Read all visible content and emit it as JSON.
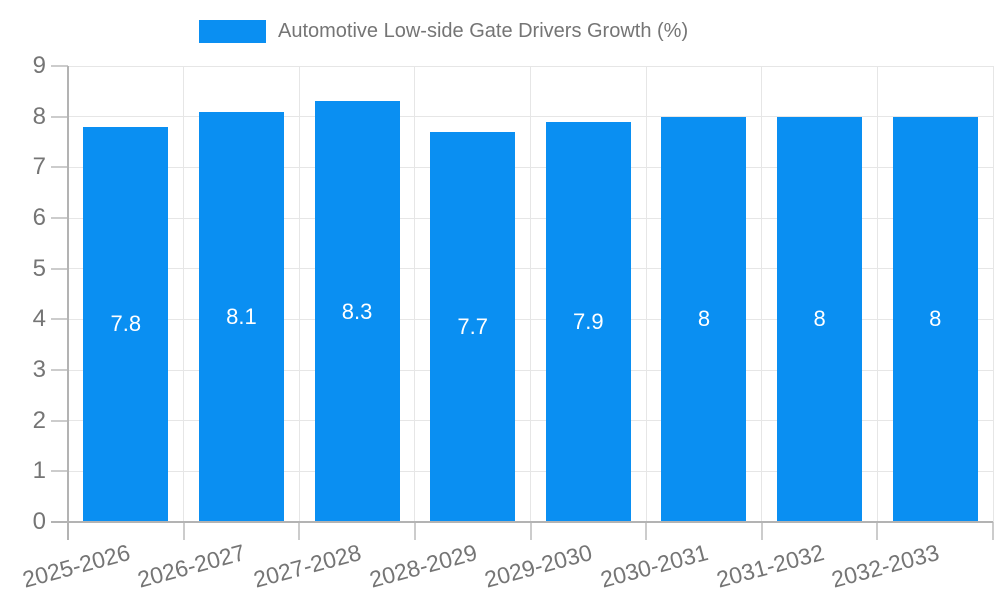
{
  "chart_data": {
    "type": "bar",
    "title": "Automotive Low-side Gate Drivers Growth (%)",
    "legend_position": "top",
    "categories": [
      "2025-2026",
      "2026-2027",
      "2027-2028",
      "2028-2029",
      "2029-2030",
      "2030-2031",
      "2031-2032",
      "2032-2033"
    ],
    "series": [
      {
        "name": "Automotive Low-side Gate Drivers Growth (%)",
        "values": [
          7.8,
          8.1,
          8.3,
          7.7,
          7.9,
          8,
          8,
          8
        ]
      }
    ],
    "value_labels": [
      "7.8",
      "8.1",
      "8.3",
      "7.7",
      "7.9",
      "8",
      "8",
      "8"
    ],
    "xlabel": "",
    "ylabel": "",
    "ylim": [
      0,
      9
    ],
    "yticks": [
      0,
      1,
      2,
      3,
      4,
      5,
      6,
      7,
      8,
      9
    ],
    "grid": true,
    "colors": {
      "bar": "#0a8ff2",
      "gridline": "#e6e6e6",
      "axis": "#b3b3b3",
      "tick": "#cccccc",
      "axis_text": "#757575",
      "value_text": "#ffffff",
      "background": "#ffffff"
    }
  }
}
